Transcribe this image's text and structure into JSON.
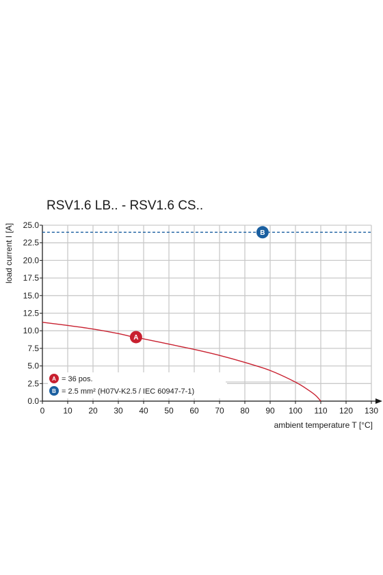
{
  "chart_data": {
    "type": "line",
    "title": "RSV1.6 LB.. - RSV1.6 CS..",
    "xlabel": "ambient temperature T [°C]",
    "ylabel": "load current I [A]",
    "xlim": [
      0,
      130
    ],
    "ylim": [
      0,
      25
    ],
    "xticks": [
      0,
      10,
      20,
      30,
      40,
      50,
      60,
      70,
      80,
      90,
      100,
      110,
      120,
      130
    ],
    "yticks": [
      0,
      2.5,
      5,
      7.5,
      10,
      12.5,
      15,
      17.5,
      20,
      22.5,
      25
    ],
    "xtick_labels": [
      "0",
      "10",
      "20",
      "30",
      "40",
      "50",
      "60",
      "70",
      "80",
      "90",
      "100",
      "110",
      "120",
      "130"
    ],
    "ytick_labels": [
      "0.0",
      "2.5",
      "5.0",
      "7.5",
      "10.0",
      "12.5",
      "15.0",
      "17.5",
      "20.0",
      "22.5",
      "25.0"
    ],
    "grid": true,
    "legend_position": "bottom-left",
    "series": [
      {
        "marker": "A",
        "color": "#c8202f",
        "style": "solid",
        "x": [
          0,
          10,
          20,
          30,
          36,
          40,
          50,
          60,
          70,
          80,
          90,
          100,
          105,
          108,
          110
        ],
        "y": [
          11.2,
          10.75,
          10.25,
          9.6,
          9.1,
          8.85,
          8.1,
          7.35,
          6.5,
          5.5,
          4.35,
          2.7,
          1.6,
          0.8,
          0
        ],
        "marker_at": [
          37,
          9.1
        ]
      },
      {
        "marker": "B",
        "color": "#1a5fa0",
        "style": "dashed",
        "x": [
          0,
          130
        ],
        "y": [
          24,
          24
        ],
        "marker_at": [
          87,
          24
        ]
      }
    ],
    "legend": [
      {
        "marker": "A",
        "color": "#c8202f",
        "text": "= 36 pos."
      },
      {
        "marker": "B",
        "color": "#1a5fa0",
        "text": "= 2.5 mm² (H07V-K2.5 / IEC 60947-7-1)"
      }
    ]
  }
}
